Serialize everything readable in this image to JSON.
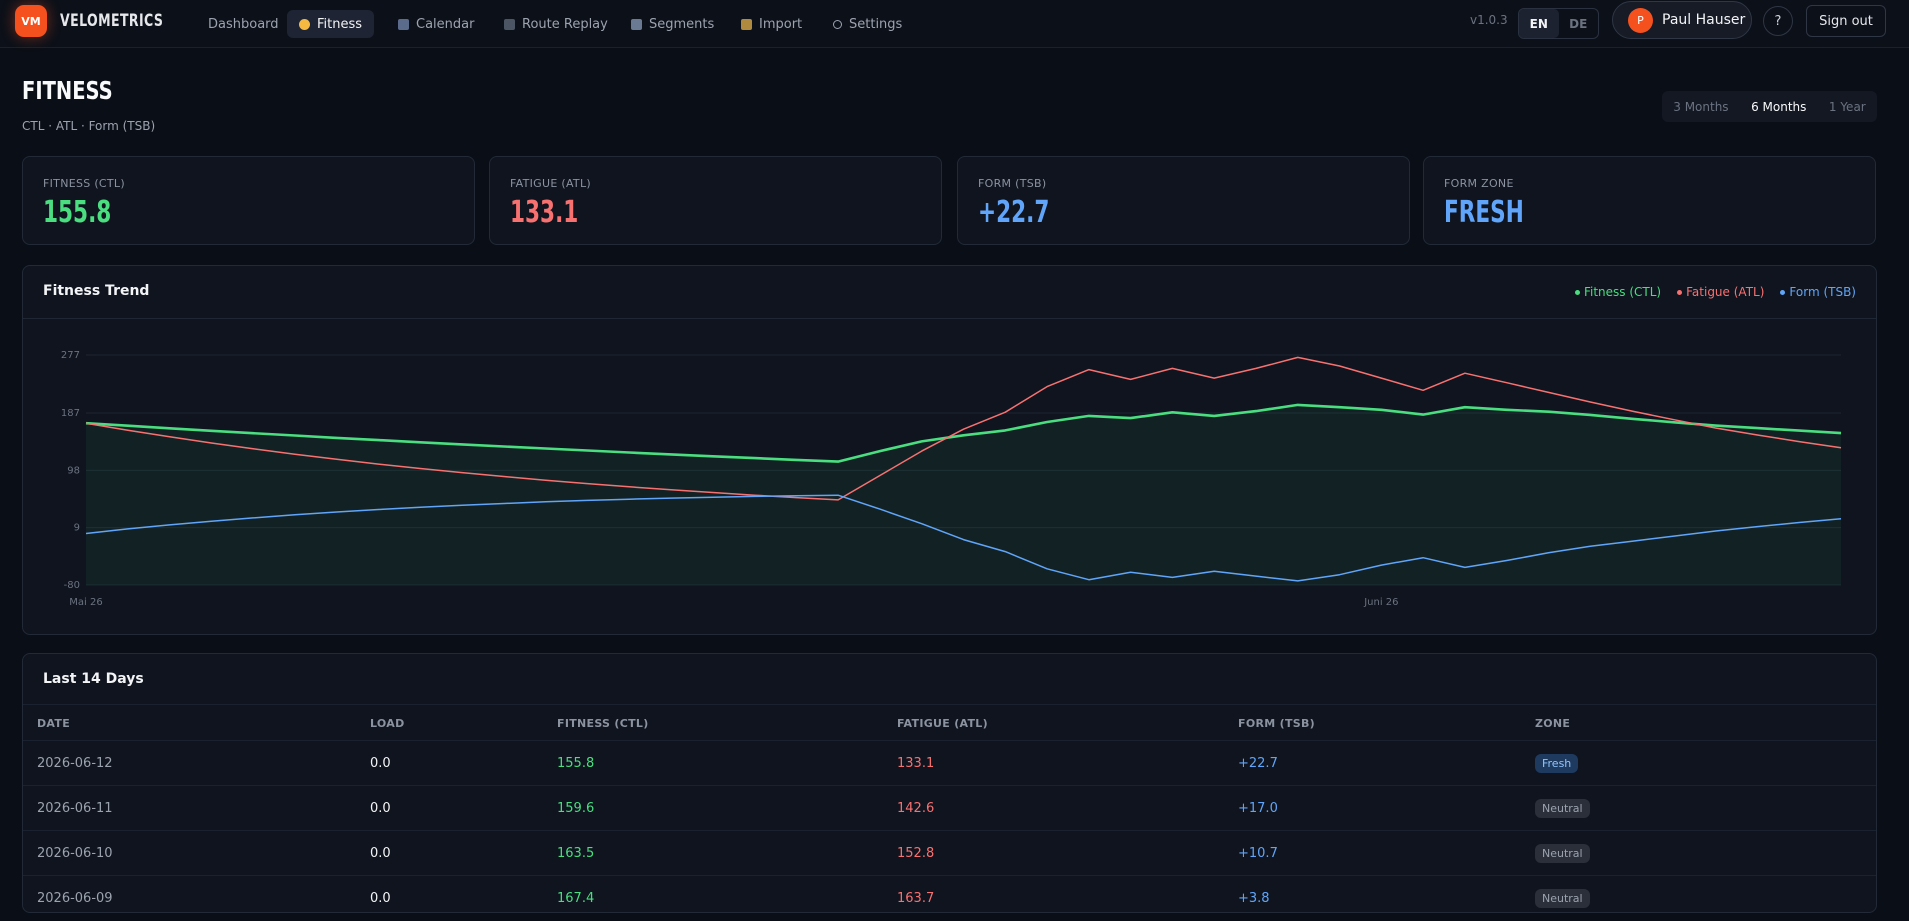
{
  "nav": {
    "logo": "VM",
    "brand": "VELOMETRICS",
    "items": [
      "Dashboard",
      "Fitness",
      "Calendar",
      "Route Replay",
      "Segments",
      "Import",
      "Settings"
    ],
    "version": "v1.0.3",
    "languages": [
      "EN",
      "DE"
    ],
    "user_initial": "P",
    "user_name": "Paul Hauser",
    "help": "?",
    "sign_out": "Sign out"
  },
  "header": {
    "title": "FITNESS",
    "subtitle": "CTL · ATL · Form (TSB)",
    "ranges": [
      "3 Months",
      "6 Months",
      "1 Year"
    ]
  },
  "cards": [
    {
      "label": "FITNESS (CTL)",
      "value": "155.8"
    },
    {
      "label": "FATIGUE (ATL)",
      "value": "133.1"
    },
    {
      "label": "FORM (TSB)",
      "value": "+22.7"
    },
    {
      "label": "FORM ZONE",
      "value": "FRESH"
    }
  ],
  "chart_data": {
    "type": "line",
    "title": "Fitness Trend",
    "categories": [
      "Mai 26",
      null,
      null,
      null,
      null,
      null,
      null,
      null,
      null,
      null,
      null,
      null,
      null,
      null,
      null,
      null,
      null,
      null,
      null,
      null,
      null,
      null,
      null,
      null,
      null,
      null,
      null,
      null,
      null,
      null,
      null,
      "Juni 26",
      null,
      null,
      null,
      null,
      null,
      null,
      null,
      null,
      null,
      null,
      null
    ],
    "series": [
      {
        "name": "Fitness (CTL)",
        "color": "#4ade80",
        "values": [
          171.2,
          167.2,
          163.3,
          159.4,
          155.6,
          152.0,
          148.4,
          144.9,
          141.5,
          138.2,
          134.9,
          131.8,
          128.7,
          125.6,
          122.7,
          119.8,
          117.0,
          114.2,
          111.5,
          127.8,
          142.9,
          152.3,
          160.0,
          173.0,
          182.5,
          179.0,
          188.0,
          182.5,
          190.0,
          199.5,
          196.0,
          192.0,
          184.5,
          196.0,
          192.0,
          189.0,
          184.0,
          178.0,
          172.5,
          167.4,
          163.5,
          159.6,
          155.8
        ]
      },
      {
        "name": "Fatigue (ATL)",
        "color": "#f87171",
        "values": [
          171.2,
          160.2,
          150.0,
          140.4,
          131.4,
          123.0,
          115.1,
          107.7,
          100.9,
          94.4,
          88.4,
          82.7,
          77.4,
          72.5,
          67.8,
          63.5,
          59.4,
          55.6,
          52.1,
          90.0,
          127.8,
          161.8,
          188.2,
          227.9,
          254.3,
          239.2,
          256.2,
          241.1,
          256.2,
          273.2,
          260.0,
          241.1,
          222.2,
          248.7,
          234.0,
          219.0,
          204.0,
          190.0,
          176.6,
          163.7,
          152.8,
          142.6,
          133.1
        ]
      },
      {
        "name": "Form (TSB)",
        "color": "#60a5fa",
        "values": [
          0.0,
          7.0,
          13.3,
          19.0,
          24.2,
          29.0,
          33.3,
          37.2,
          40.6,
          43.8,
          46.5,
          49.1,
          51.3,
          53.1,
          54.9,
          56.3,
          57.6,
          58.6,
          59.4,
          37.8,
          15.1,
          -9.5,
          -28.2,
          -54.9,
          -71.8,
          -60.2,
          -68.2,
          -58.6,
          -66.2,
          -73.7,
          -64.0,
          -49.1,
          -37.7,
          -52.7,
          -42.0,
          -30.0,
          -20.0,
          -12.0,
          -4.1,
          3.8,
          10.7,
          17.0,
          22.7
        ]
      }
    ],
    "ylim": [
      -80,
      277
    ],
    "yticks": [
      -80,
      9,
      98,
      187,
      277
    ],
    "grid": true
  },
  "table": {
    "title": "Last 14 Days",
    "columns": [
      "DATE",
      "LOAD",
      "FITNESS (CTL)",
      "FATIGUE (ATL)",
      "FORM (TSB)",
      "ZONE"
    ],
    "rows": [
      [
        "2026-06-12",
        "0.0",
        "155.8",
        "133.1",
        "+22.7",
        "Fresh"
      ],
      [
        "2026-06-11",
        "0.0",
        "159.6",
        "142.6",
        "+17.0",
        "Neutral"
      ],
      [
        "2026-06-10",
        "0.0",
        "163.5",
        "152.8",
        "+10.7",
        "Neutral"
      ],
      [
        "2026-06-09",
        "0.0",
        "167.4",
        "163.7",
        "+3.8",
        "Neutral"
      ]
    ]
  }
}
